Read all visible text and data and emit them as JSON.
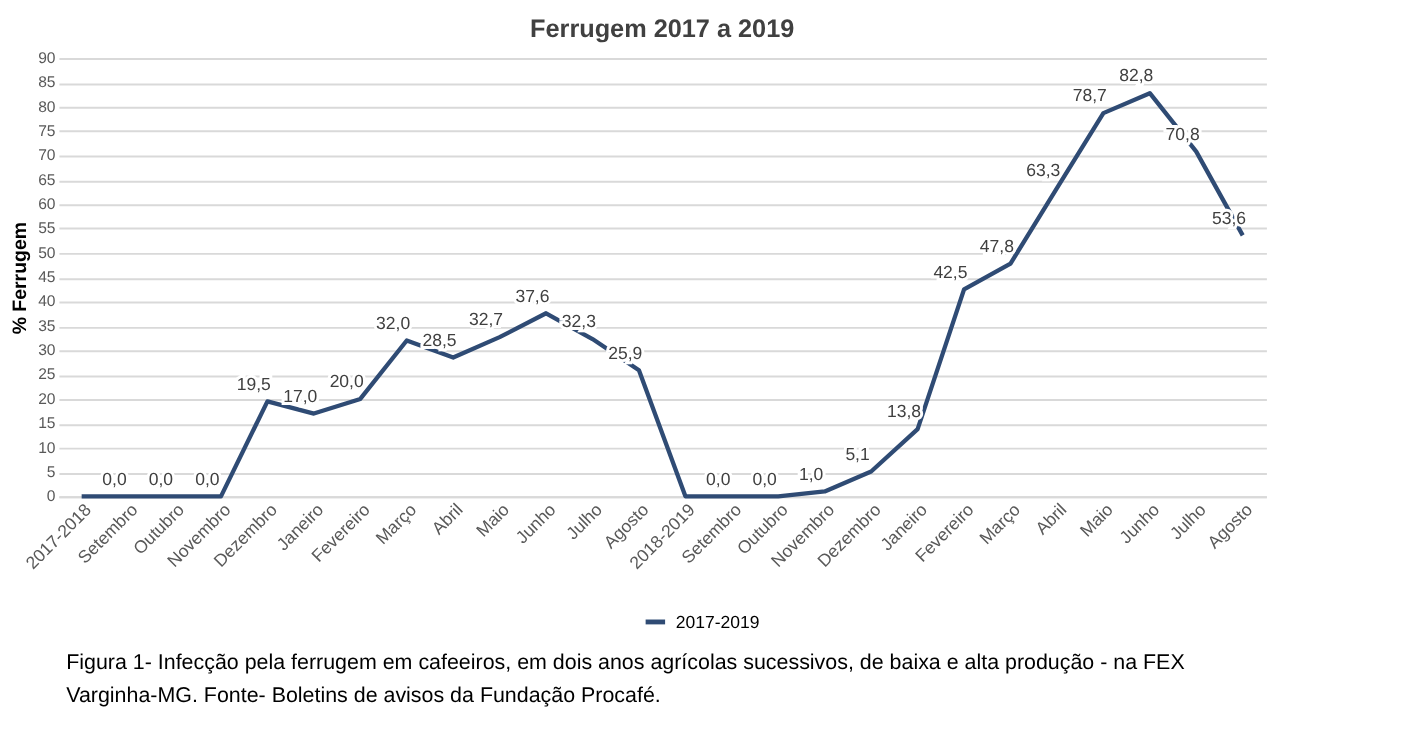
{
  "chart_data": {
    "type": "line",
    "title": "Ferrugem 2017 a 2019",
    "ylabel": "% Ferrugem",
    "categories": [
      "2017-2018",
      "Setembro",
      "Outubro",
      "Novembro",
      "Dezembro",
      "Janeiro",
      "Fevereiro",
      "Março",
      "Abril",
      "Maio",
      "Junho",
      "Julho",
      "Agosto",
      "2018-2019",
      "Setembro",
      "Outubro",
      "Novembro",
      "Dezembro",
      "Janeiro",
      "Fevereiro",
      "Março",
      "Abril",
      "Maio",
      "Junho",
      "Julho",
      "Agosto"
    ],
    "series": [
      {
        "name": "2017-2019",
        "color": "#2f4b74",
        "values": [
          0,
          0,
          0,
          0,
          19.5,
          17.0,
          20.0,
          32.0,
          28.5,
          32.7,
          37.6,
          32.3,
          25.9,
          0,
          0,
          0,
          1.0,
          5.1,
          13.8,
          42.5,
          47.8,
          63.3,
          78.7,
          82.8,
          70.8,
          53.6
        ],
        "value_labels": [
          null,
          "0,0",
          "0,0",
          "0,0",
          "19,5",
          "17,0",
          "20,0",
          "32,0",
          "28,5",
          "32,7",
          "37,6",
          "32,3",
          "25,9",
          null,
          "0,0",
          "0,0",
          "1,0",
          "5,1",
          "13,8",
          "42,5",
          "47,8",
          "63,3",
          "78,7",
          "82,8",
          "70,8",
          "53,6"
        ]
      }
    ],
    "ylim": [
      0,
      90
    ],
    "yticks": [
      0,
      5,
      10,
      15,
      20,
      25,
      30,
      35,
      40,
      45,
      50,
      55,
      60,
      65,
      70,
      75,
      80,
      85,
      90
    ],
    "grid": "y",
    "legend": "bottom",
    "marker": "none",
    "line_style": "solid",
    "annotations": [
      "Figura 1- Infecção pela ferrugem em cafeeiros, em dois anos agrícolas sucessivos, de baixa e alta produção - na FEX Varginha-MG. Fonte- Boletins de avisos da Fundação Procafé."
    ]
  }
}
